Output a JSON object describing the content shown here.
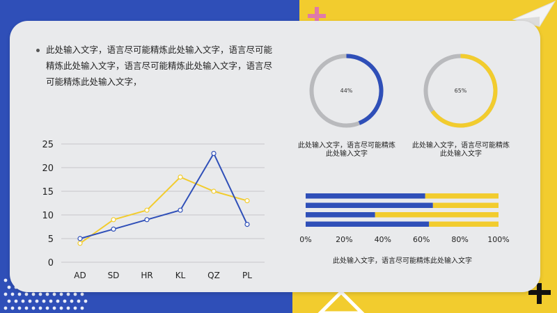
{
  "paragraph": "此处输入文字，语言尽可能精炼此处输入文字，语言尽可能精炼此处输入文字，语言尽可能精炼此处输入文字，语言尽可能精炼此处输入文字，",
  "colors": {
    "blue": "#2f4fb8",
    "yellow": "#f2cc2e",
    "gray": "#b9babd"
  },
  "rings": [
    {
      "percent": 44,
      "label": "44%",
      "caption_line1": "此处输入文字，语言尽可能精炼",
      "caption_line2": "此处输入文字",
      "color": "#2f4fb8"
    },
    {
      "percent": 65,
      "label": "65%",
      "caption_line1": "此处输入文字，语言尽可能精炼",
      "caption_line2": "此处输入文字",
      "color": "#f2cc2e"
    }
  ],
  "bar_caption": "此处输入文字，语言尽可能精炼此处输入文字",
  "chart_data": [
    {
      "type": "line",
      "categories": [
        "AD",
        "SD",
        "HR",
        "KL",
        "QZ",
        "PL"
      ],
      "series": [
        {
          "values": [
            5,
            7,
            9,
            11,
            23,
            8
          ],
          "color": "#2f4fb8"
        },
        {
          "values": [
            4,
            9,
            11,
            18,
            15,
            13
          ],
          "color": "#f2cc2e"
        }
      ],
      "ylim": [
        0,
        25
      ],
      "yticks": [
        0,
        5,
        10,
        15,
        20,
        25
      ],
      "grid": true
    },
    {
      "type": "bar",
      "orientation": "horizontal-stacked-100",
      "xticks": [
        "0%",
        "20%",
        "40%",
        "60%",
        "80%",
        "100%"
      ],
      "bars": [
        {
          "blue": 62,
          "yellow": 38
        },
        {
          "blue": 66,
          "yellow": 34
        },
        {
          "blue": 36,
          "yellow": 64
        },
        {
          "blue": 64,
          "yellow": 36
        }
      ]
    },
    {
      "type": "pie",
      "variant": "donut",
      "values": [
        44,
        56
      ]
    },
    {
      "type": "pie",
      "variant": "donut",
      "values": [
        65,
        35
      ]
    }
  ]
}
